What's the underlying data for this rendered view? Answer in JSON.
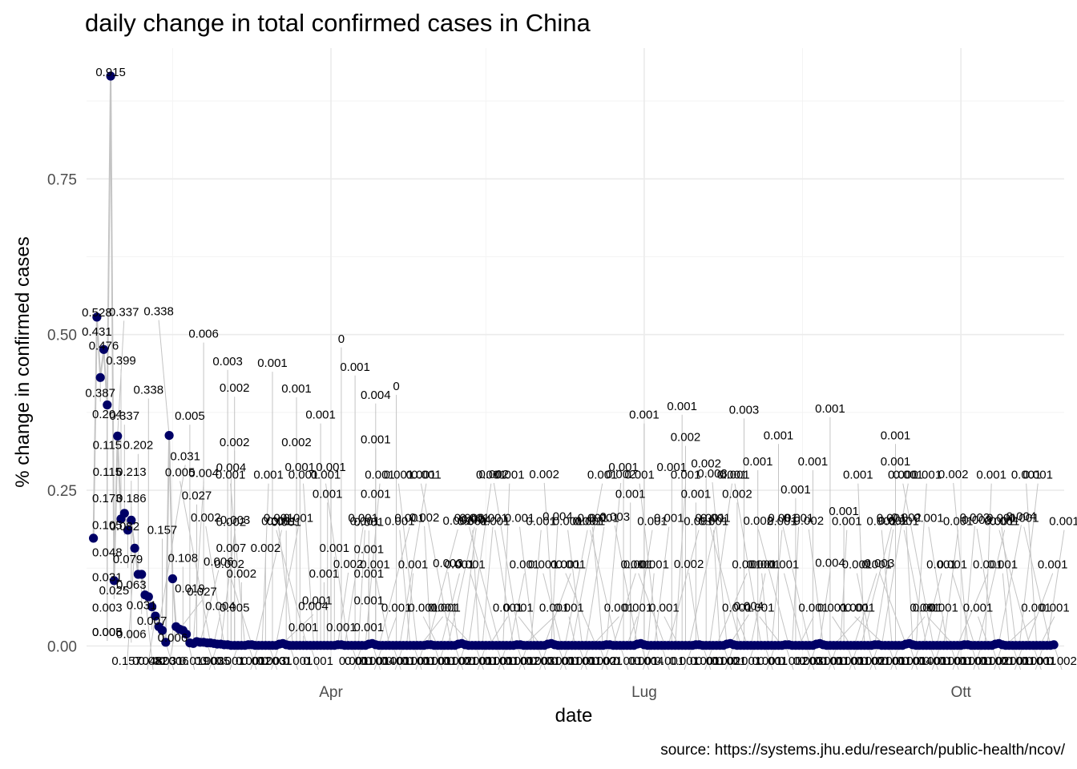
{
  "chart_data": {
    "type": "scatter",
    "title": "daily change in total confirmed cases in China",
    "xlabel": "date",
    "ylabel": "% change in confirmed cases",
    "caption": "source: https://systems.jhu.edu/research/public-health/ncov/",
    "x_range": [
      "2020-01-21",
      "2020-10-31"
    ],
    "y_range": [
      -0.02,
      0.96
    ],
    "x_ticks": [
      {
        "date": "2020-04-01",
        "label": "Apr"
      },
      {
        "date": "2020-07-01",
        "label": "Lug"
      },
      {
        "date": "2020-10-01",
        "label": "Ott"
      }
    ],
    "y_ticks": [
      {
        "value": 0.0,
        "label": "0.00"
      },
      {
        "value": 0.25,
        "label": "0.25"
      },
      {
        "value": 0.5,
        "label": "0.50"
      },
      {
        "value": 0.75,
        "label": "0.75"
      }
    ],
    "grid": true,
    "point_color": "#000066",
    "connector_color": "#c4c4c4",
    "series": [
      {
        "start_date": "2020-01-23",
        "head_values": [
          0.173,
          0.528,
          0.431,
          0.476,
          0.387,
          0.915,
          0.105,
          0.337,
          0.204,
          0.213,
          0.186,
          0.202,
          0.157,
          0.115,
          0.115,
          0.082,
          0.079,
          0.063,
          0.048,
          0.031,
          0.025,
          0.006,
          0.338,
          0.108,
          0.031,
          0.027,
          0.025,
          0.019,
          0.005,
          0.004,
          0.007,
          0.006,
          0.006,
          0.005,
          0.005,
          0.004,
          0.003,
          0.003,
          0.002,
          0.002,
          0.001,
          0.001
        ],
        "tail_values": [
          0.001,
          0.001,
          0.001,
          0.002,
          0.002,
          0.001,
          0.001,
          0.001,
          0.001,
          0.001,
          0.001,
          0.001,
          0.003,
          0.004,
          0.002,
          0.001,
          0.001,
          0.001,
          0.001,
          0.001,
          0.001,
          0.001,
          0.001,
          0.001,
          0.001,
          0.001
        ],
        "tail_pattern_days": 18
      }
    ],
    "data_labels": [
      {
        "text": "0.915",
        "x": "2020-01-28",
        "y": 0.915
      },
      {
        "text": "0.528",
        "x": "2020-01-24",
        "y": 0.529
      },
      {
        "text": "0.476",
        "x": "2020-01-26",
        "y": 0.476
      },
      {
        "text": "0.431",
        "x": "2020-01-24",
        "y": 0.498
      },
      {
        "text": "0.399",
        "x": "2020-01-31",
        "y": 0.452
      },
      {
        "text": "0.387",
        "x": "2020-01-25",
        "y": 0.4
      },
      {
        "text": "0.338",
        "x": "2020-02-08",
        "y": 0.405
      },
      {
        "text": "0.204",
        "x": "2020-01-27",
        "y": 0.366
      },
      {
        "text": "0.337",
        "x": "2020-02-01",
        "y": 0.363
      },
      {
        "text": "0.005",
        "x": "2020-02-20",
        "y": 0.363
      },
      {
        "text": "0.006",
        "x": "2020-02-24",
        "y": 0.495
      },
      {
        "text": "0.003",
        "x": "2020-03-02",
        "y": 0.451
      },
      {
        "text": "0.002",
        "x": "2020-03-04",
        "y": 0.408
      },
      {
        "text": "0.001",
        "x": "2020-03-15",
        "y": 0.448
      },
      {
        "text": "0.001",
        "x": "2020-03-22",
        "y": 0.407
      },
      {
        "text": "0",
        "x": "2020-04-04",
        "y": 0.487
      },
      {
        "text": "0.001",
        "x": "2020-04-08",
        "y": 0.442
      },
      {
        "text": "0.004",
        "x": "2020-04-14",
        "y": 0.397
      },
      {
        "text": "0.202",
        "x": "2020-02-05",
        "y": 0.316
      },
      {
        "text": "0.115",
        "x": "2020-01-27",
        "y": 0.316
      },
      {
        "text": "0.115",
        "x": "2020-01-27",
        "y": 0.273
      },
      {
        "text": "0.213",
        "x": "2020-02-03",
        "y": 0.273
      },
      {
        "text": "0.002",
        "x": "2020-03-04",
        "y": 0.321
      },
      {
        "text": "0.004",
        "x": "2020-03-03",
        "y": 0.28
      },
      {
        "text": "0.173",
        "x": "2020-01-27",
        "y": 0.231
      },
      {
        "text": "0.186",
        "x": "2020-02-03",
        "y": 0.231
      },
      {
        "text": "0.027",
        "x": "2020-02-22",
        "y": 0.235
      },
      {
        "text": "0.105",
        "x": "2020-01-27",
        "y": 0.188
      },
      {
        "text": "0.082",
        "x": "2020-02-01",
        "y": 0.186
      },
      {
        "text": "0.157",
        "x": "2020-02-12",
        "y": 0.18
      },
      {
        "text": "0.048",
        "x": "2020-01-27",
        "y": 0.144
      },
      {
        "text": "0.079",
        "x": "2020-02-02",
        "y": 0.133
      },
      {
        "text": "0.108",
        "x": "2020-02-18",
        "y": 0.135
      },
      {
        "text": "0.031",
        "x": "2020-01-27",
        "y": 0.104
      },
      {
        "text": "0.063",
        "x": "2020-02-03",
        "y": 0.092
      },
      {
        "text": "0.025",
        "x": "2020-01-29",
        "y": 0.083
      },
      {
        "text": "0.019",
        "x": "2020-02-20",
        "y": 0.086
      },
      {
        "text": "0.003",
        "x": "2020-01-27",
        "y": 0.055
      },
      {
        "text": "0.031",
        "x": "2020-02-06",
        "y": 0.059
      },
      {
        "text": "0.005",
        "x": "2020-03-04",
        "y": 0.055
      },
      {
        "text": "0.007",
        "x": "2020-02-09",
        "y": 0.034
      },
      {
        "text": "0.008",
        "x": "2020-01-27",
        "y": 0.016
      },
      {
        "text": "0.005",
        "x": "2020-01-27",
        "y": 0.016
      },
      {
        "text": "0.006",
        "x": "2020-02-03",
        "y": 0.013
      },
      {
        "text": "0.006",
        "x": "2020-02-15",
        "y": 0.007
      },
      {
        "text": "0.002",
        "x": "2020-03-03",
        "y": 0.193
      },
      {
        "text": "0.007",
        "x": "2020-03-03",
        "y": 0.151
      },
      {
        "text": "0.002",
        "x": "2020-03-06",
        "y": 0.11
      },
      {
        "text": "0.002",
        "x": "2020-03-13",
        "y": 0.151
      },
      {
        "text": "0.001",
        "x": "2020-03-19",
        "y": 0.193
      },
      {
        "text": "0.001",
        "x": "2020-03-23",
        "y": 0.281
      },
      {
        "text": "0.002",
        "x": "2020-03-22",
        "y": 0.321
      },
      {
        "text": "0.001",
        "x": "2020-03-29",
        "y": 0.365
      },
      {
        "text": "0.001",
        "x": "2020-04-01",
        "y": 0.281
      },
      {
        "text": "0.001",
        "x": "2020-03-31",
        "y": 0.238
      },
      {
        "text": "0.001",
        "x": "2020-04-02",
        "y": 0.151
      },
      {
        "text": "0.001",
        "x": "2020-03-30",
        "y": 0.11
      },
      {
        "text": "0.001",
        "x": "2020-03-28",
        "y": 0.067
      },
      {
        "text": "0.001",
        "x": "2020-03-24",
        "y": 0.024
      },
      {
        "text": "0.001",
        "x": "2020-04-04",
        "y": 0.024
      },
      {
        "text": "0.001",
        "x": "2020-04-12",
        "y": 0.024
      },
      {
        "text": "0.001",
        "x": "2020-04-12",
        "y": 0.067
      },
      {
        "text": "0.001",
        "x": "2020-04-12",
        "y": 0.11
      },
      {
        "text": "0.001",
        "x": "2020-04-12",
        "y": 0.149
      },
      {
        "text": "0.001",
        "x": "2020-04-12",
        "y": 0.193
      },
      {
        "text": "0.001",
        "x": "2020-04-14",
        "y": 0.238
      },
      {
        "text": "0.001",
        "x": "2020-04-14",
        "y": 0.325
      },
      {
        "text": "0.001",
        "x": "2020-06-25",
        "y": 0.281
      },
      {
        "text": "0.001",
        "x": "2020-07-01",
        "y": 0.365
      },
      {
        "text": "0.001",
        "x": "2020-06-27",
        "y": 0.238
      },
      {
        "text": "0.001",
        "x": "2020-07-09",
        "y": 0.281
      },
      {
        "text": "0.001",
        "x": "2020-07-12",
        "y": 0.379
      },
      {
        "text": "0.002",
        "x": "2020-07-13",
        "y": 0.329
      },
      {
        "text": "0.002",
        "x": "2020-07-19",
        "y": 0.287
      },
      {
        "text": "0.001",
        "x": "2020-07-16",
        "y": 0.238
      },
      {
        "text": "0.003",
        "x": "2020-07-30",
        "y": 0.373
      },
      {
        "text": "0.001",
        "x": "2020-08-09",
        "y": 0.332
      },
      {
        "text": "0.001",
        "x": "2020-08-03",
        "y": 0.29
      },
      {
        "text": "0.002",
        "x": "2020-07-28",
        "y": 0.238
      },
      {
        "text": "0.001",
        "x": "2020-08-24",
        "y": 0.375
      },
      {
        "text": "0.001",
        "x": "2020-08-14",
        "y": 0.245
      },
      {
        "text": "0.001",
        "x": "2020-08-19",
        "y": 0.29
      },
      {
        "text": "0.001",
        "x": "2020-09-12",
        "y": 0.332
      },
      {
        "text": "0.001",
        "x": "2020-09-12",
        "y": 0.29
      },
      {
        "text": "0.001",
        "x": "2020-08-28",
        "y": 0.21
      },
      {
        "text": "0",
        "x": "2020-04-20",
        "y": 0.411
      }
    ]
  }
}
